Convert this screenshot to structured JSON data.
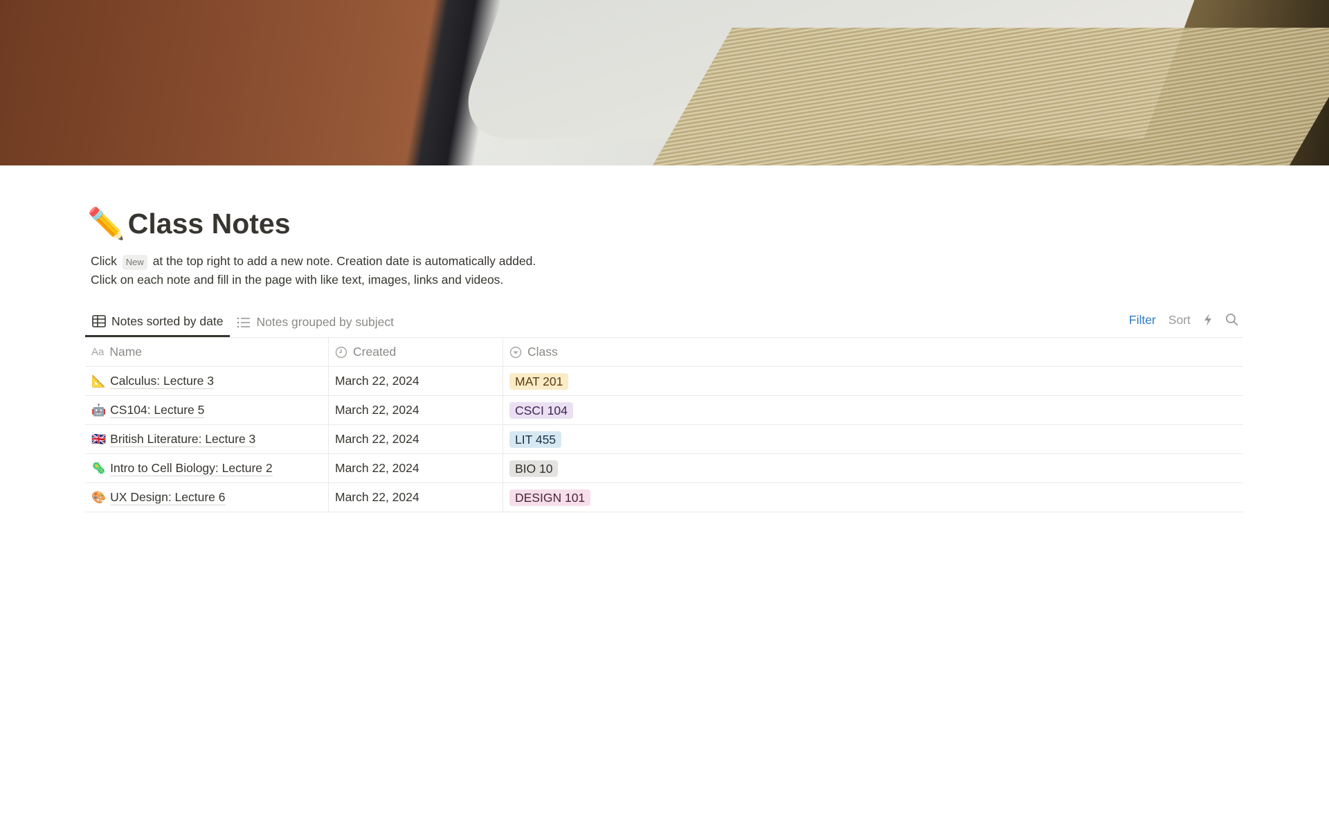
{
  "page": {
    "icon": "✏️",
    "title": "Class Notes",
    "description": {
      "line1_before": "Click",
      "chip": "New",
      "line1_after": "at the top right to add a new note. Creation date is automatically added.",
      "line2": "Click on each note and fill in the page with like text, images, links and videos."
    }
  },
  "views": {
    "tabs": [
      {
        "label": "Notes sorted by date",
        "icon": "table-icon",
        "active": true
      },
      {
        "label": "Notes grouped by subject",
        "icon": "list-icon",
        "active": false
      }
    ]
  },
  "toolbar": {
    "filter": "Filter",
    "sort": "Sort",
    "automation_icon": "lightning-icon",
    "search_icon": "search-icon",
    "accent": "#2f7ac0"
  },
  "table": {
    "columns": [
      {
        "label": "Name",
        "icon": "Aa"
      },
      {
        "label": "Created",
        "icon": "clock-icon"
      },
      {
        "label": "Class",
        "icon": "select-icon"
      }
    ],
    "rows": [
      {
        "icon": "📐",
        "name": "Calculus: Lecture 3",
        "created": "March 22, 2024",
        "class": "MAT 201",
        "bg": "#fbecc8",
        "fg": "#5c3b0f"
      },
      {
        "icon": "🤖",
        "name": "CS104: Lecture 5",
        "created": "March 22, 2024",
        "class": "CSCI 104",
        "bg": "#eae0f2",
        "fg": "#412454"
      },
      {
        "icon": "🇬🇧",
        "name": "British Literature: Lecture 3",
        "created": "March 22, 2024",
        "class": "LIT 455",
        "bg": "#d8e8f2",
        "fg": "#183347"
      },
      {
        "icon": "🦠",
        "name": "Intro to Cell Biology: Lecture 2",
        "created": "March 22, 2024",
        "class": "BIO 10",
        "bg": "#e3e2e0",
        "fg": "#32302c"
      },
      {
        "icon": "🎨",
        "name": "UX Design: Lecture 6",
        "created": "March 22, 2024",
        "class": "DESIGN 101",
        "bg": "#f6dfea",
        "fg": "#4c2337"
      }
    ]
  }
}
